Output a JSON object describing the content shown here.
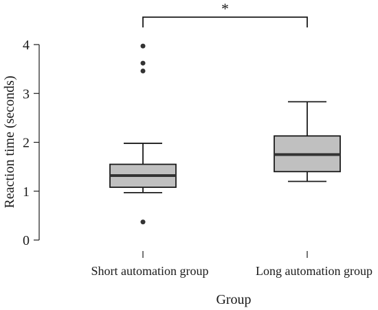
{
  "chart_data": {
    "type": "box",
    "xlabel": "Group",
    "ylabel": "Reaction time (seconds)",
    "ylim": [
      0,
      4
    ],
    "yticks": [
      "0",
      "1",
      "2",
      "3",
      "4"
    ],
    "categories": [
      "Short automation group",
      "Long automation group"
    ],
    "box_fill": "#c0c0c0",
    "groups": [
      {
        "whisker_low": 0.97,
        "q1": 1.08,
        "median": 1.32,
        "q3": 1.55,
        "whisker_high": 1.98,
        "outliers": [
          0.37,
          3.46,
          3.62,
          3.97
        ]
      },
      {
        "whisker_low": 1.2,
        "q1": 1.4,
        "median": 1.75,
        "q3": 2.13,
        "whisker_high": 2.83,
        "outliers": []
      }
    ],
    "significance": {
      "between": [
        0,
        1
      ],
      "label": "*"
    }
  }
}
